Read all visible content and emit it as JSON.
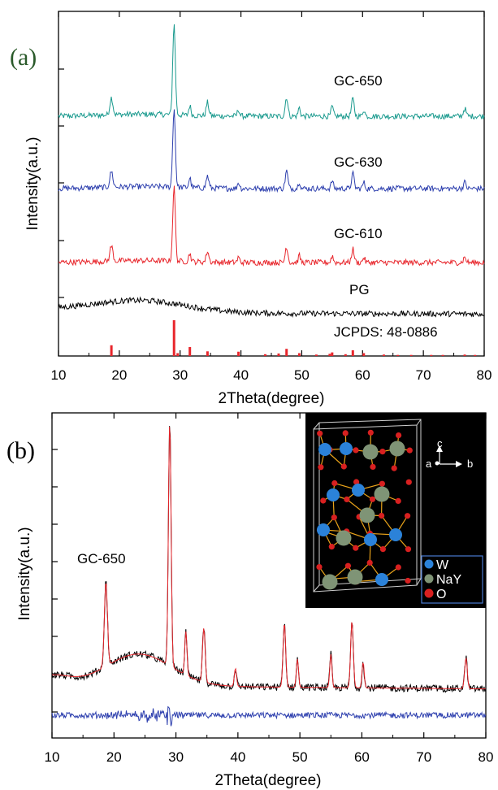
{
  "colors": {
    "black": "#000000",
    "red": "#e8262c",
    "blue": "#2d3fae",
    "teal": "#1a9a8e",
    "fit_red": "#e8262c",
    "inset_bg": "#000000",
    "W": "#2b82d9",
    "NaY": "#7f9476",
    "O": "#d82020",
    "bond": "#e8a21a",
    "panel_a_label": "#2a5a2a"
  },
  "chart_data": [
    {
      "panel": "(a)",
      "type": "line",
      "xlabel": "2Theta(degree)",
      "ylabel": "Intensity(a.u.)",
      "xlim": [
        10,
        80
      ],
      "xticks": [
        "10",
        "20",
        "30",
        "40",
        "50",
        "60",
        "70",
        "80"
      ],
      "peaks": [
        18.7,
        29.0,
        31.6,
        34.5,
        39.6,
        47.5,
        49.6,
        55.0,
        58.4,
        60.2,
        76.8
      ],
      "series": [
        {
          "name": "GC-650",
          "color": "teal",
          "offset": 4,
          "peak_heights": [
            0.18,
            0.95,
            0.1,
            0.14,
            0.07,
            0.2,
            0.09,
            0.1,
            0.18,
            0.07,
            0.08
          ]
        },
        {
          "name": "GC-630",
          "color": "blue",
          "offset": 3,
          "peak_heights": [
            0.18,
            0.9,
            0.11,
            0.14,
            0.07,
            0.2,
            0.08,
            0.09,
            0.17,
            0.07,
            0.07
          ]
        },
        {
          "name": "GC-610",
          "color": "red",
          "offset": 2,
          "peak_heights": [
            0.18,
            0.88,
            0.1,
            0.13,
            0.06,
            0.19,
            0.08,
            0.08,
            0.16,
            0.06,
            0.06
          ]
        },
        {
          "name": "PG",
          "color": "black",
          "offset": 1,
          "amorphous_hump": {
            "center": 23,
            "height": 0.12
          }
        }
      ],
      "reference": {
        "name": "JCPDS: 48-0886",
        "color": "red",
        "lines": [
          {
            "x": 18.7,
            "h": 0.3
          },
          {
            "x": 29.0,
            "h": 1.0
          },
          {
            "x": 29.6,
            "h": 0.08
          },
          {
            "x": 31.6,
            "h": 0.25
          },
          {
            "x": 34.5,
            "h": 0.13
          },
          {
            "x": 39.6,
            "h": 0.12
          },
          {
            "x": 44.0,
            "h": 0.05
          },
          {
            "x": 46.2,
            "h": 0.07
          },
          {
            "x": 47.5,
            "h": 0.2
          },
          {
            "x": 49.6,
            "h": 0.08
          },
          {
            "x": 52.4,
            "h": 0.04
          },
          {
            "x": 54.6,
            "h": 0.06
          },
          {
            "x": 55.0,
            "h": 0.1
          },
          {
            "x": 57.2,
            "h": 0.05
          },
          {
            "x": 58.4,
            "h": 0.16
          },
          {
            "x": 60.2,
            "h": 0.08
          },
          {
            "x": 63.5,
            "h": 0.04
          },
          {
            "x": 65.8,
            "h": 0.03
          },
          {
            "x": 68.0,
            "h": 0.03
          },
          {
            "x": 71.3,
            "h": 0.03
          },
          {
            "x": 73.2,
            "h": 0.03
          },
          {
            "x": 76.8,
            "h": 0.04
          },
          {
            "x": 78.5,
            "h": 0.03
          }
        ]
      }
    },
    {
      "panel": "(b)",
      "type": "line",
      "xlabel": "2Theta(degree)",
      "ylabel": "Intensity(a.u.)",
      "xlim": [
        10,
        80
      ],
      "xticks": [
        "10",
        "20",
        "30",
        "40",
        "50",
        "60",
        "70",
        "80"
      ],
      "annotation": "GC-650",
      "peaks": [
        18.7,
        29.0,
        31.6,
        34.5,
        39.6,
        47.5,
        49.6,
        55.0,
        58.4,
        60.2,
        76.8
      ],
      "series": [
        {
          "role": "observed",
          "color": "black",
          "peak_heights": [
            0.33,
            0.95,
            0.17,
            0.21,
            0.07,
            0.25,
            0.11,
            0.13,
            0.26,
            0.1,
            0.12
          ]
        },
        {
          "role": "calculated",
          "color": "fit_red",
          "peak_heights": [
            0.33,
            0.95,
            0.17,
            0.21,
            0.07,
            0.25,
            0.11,
            0.13,
            0.26,
            0.1,
            0.12
          ]
        },
        {
          "role": "difference",
          "color": "blue"
        }
      ]
    }
  ],
  "inset": {
    "axis_labels": {
      "c": "c",
      "a": "a",
      "b": "b"
    },
    "legend": [
      {
        "label": "W",
        "color": "W"
      },
      {
        "label": "NaY",
        "color": "NaY"
      },
      {
        "label": "O",
        "color": "O"
      }
    ]
  }
}
